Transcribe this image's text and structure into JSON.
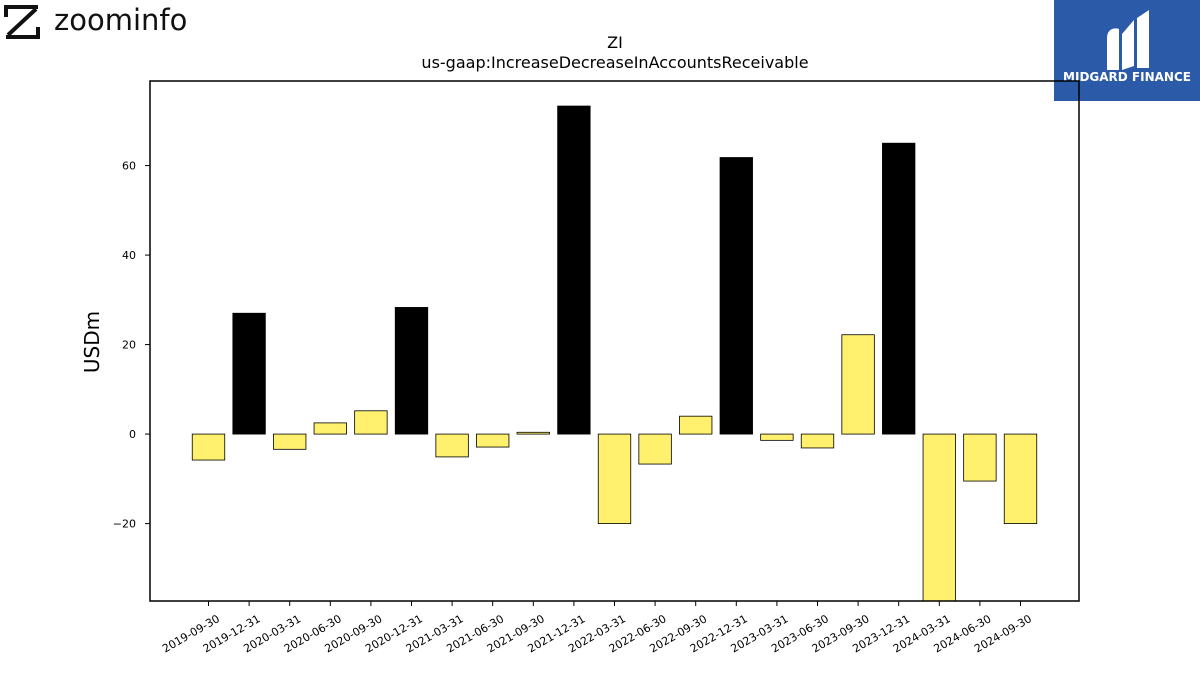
{
  "branding": {
    "left_logo_text": "zoominfo",
    "right_logo_text": "MIDGARD FINANCE",
    "right_logo_bg": "#2b5aa8"
  },
  "chart_data": {
    "type": "bar",
    "title": "ZI",
    "subtitle": "us-gaap:IncreaseDecreaseInAccountsReceivable",
    "xlabel": "",
    "ylabel": "USDm",
    "ylim": [
      -37.3,
      78.9
    ],
    "yticks": [
      -20,
      0,
      20,
      40,
      60
    ],
    "ytick_labels": [
      "−20",
      "0",
      "20",
      "40",
      "60"
    ],
    "grid": false,
    "legend": "none",
    "colors": {
      "q4": "#000000",
      "other": "#fff06e",
      "edge": "#000000"
    },
    "categories": [
      "2019-09-30",
      "2019-12-31",
      "2020-03-31",
      "2020-06-30",
      "2020-09-30",
      "2020-12-31",
      "2021-03-31",
      "2021-06-30",
      "2021-09-30",
      "2021-12-31",
      "2022-03-31",
      "2022-06-30",
      "2022-09-30",
      "2022-12-31",
      "2023-03-31",
      "2023-06-30",
      "2023-09-30",
      "2023-12-31",
      "2024-03-31",
      "2024-06-30",
      "2024-09-30"
    ],
    "values": [
      -5.8,
      27.0,
      -3.4,
      2.5,
      5.2,
      28.3,
      -5.1,
      -2.9,
      0.4,
      73.3,
      -20.0,
      -6.7,
      4.0,
      61.8,
      -1.4,
      -3.1,
      22.2,
      65.0,
      -37.3,
      -10.5,
      -20.0
    ]
  }
}
